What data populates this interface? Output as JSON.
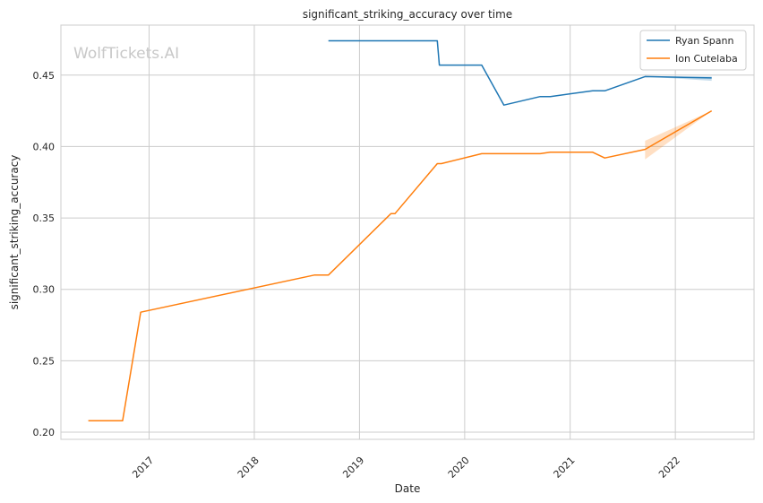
{
  "chart_data": {
    "type": "line",
    "title": "significant_striking_accuracy over time",
    "xlabel": "Date",
    "ylabel": "significant_striking_accuracy",
    "watermark": "WolfTickets.AI",
    "xlim": [
      "2016-03-01",
      "2022-10-01"
    ],
    "ylim": [
      0.195,
      0.485
    ],
    "x_ticks": [
      "2017-01-01",
      "2018-01-01",
      "2019-01-01",
      "2020-01-01",
      "2021-01-01",
      "2022-01-01"
    ],
    "x_tick_labels": [
      "2017",
      "2018",
      "2019",
      "2020",
      "2021",
      "2022"
    ],
    "y_ticks": [
      0.2,
      0.25,
      0.3,
      0.35,
      0.4,
      0.45
    ],
    "y_tick_labels": [
      "0.20",
      "0.25",
      "0.30",
      "0.35",
      "0.40",
      "0.45"
    ],
    "grid": true,
    "legend_position": "top-right",
    "series": [
      {
        "name": "Ryan Spann",
        "color": "#1f77b4",
        "points": [
          [
            "2018-09-15",
            0.474
          ],
          [
            "2019-09-28",
            0.474
          ],
          [
            "2019-10-05",
            0.457
          ],
          [
            "2020-02-29",
            0.457
          ],
          [
            "2020-05-16",
            0.429
          ],
          [
            "2020-09-19",
            0.435
          ],
          [
            "2020-10-24",
            0.435
          ],
          [
            "2021-03-20",
            0.439
          ],
          [
            "2021-05-01",
            0.439
          ],
          [
            "2021-09-18",
            0.449
          ],
          [
            "2022-05-07",
            0.448
          ]
        ],
        "band_end": [
          0.446,
          0.449
        ]
      },
      {
        "name": "Ion Cutelaba",
        "color": "#ff7f0e",
        "points": [
          [
            "2016-06-04",
            0.208
          ],
          [
            "2016-10-01",
            0.208
          ],
          [
            "2016-12-03",
            0.284
          ],
          [
            "2018-07-28",
            0.31
          ],
          [
            "2018-09-15",
            0.31
          ],
          [
            "2019-04-20",
            0.353
          ],
          [
            "2019-05-04",
            0.353
          ],
          [
            "2019-09-28",
            0.388
          ],
          [
            "2019-10-12",
            0.388
          ],
          [
            "2020-02-29",
            0.395
          ],
          [
            "2020-09-19",
            0.395
          ],
          [
            "2020-10-24",
            0.396
          ],
          [
            "2021-03-20",
            0.396
          ],
          [
            "2021-05-01",
            0.392
          ],
          [
            "2021-09-18",
            0.398
          ],
          [
            "2022-05-07",
            0.425
          ]
        ],
        "band_start_date": "2021-09-18",
        "band_start": [
          0.391,
          0.404
        ]
      }
    ]
  }
}
